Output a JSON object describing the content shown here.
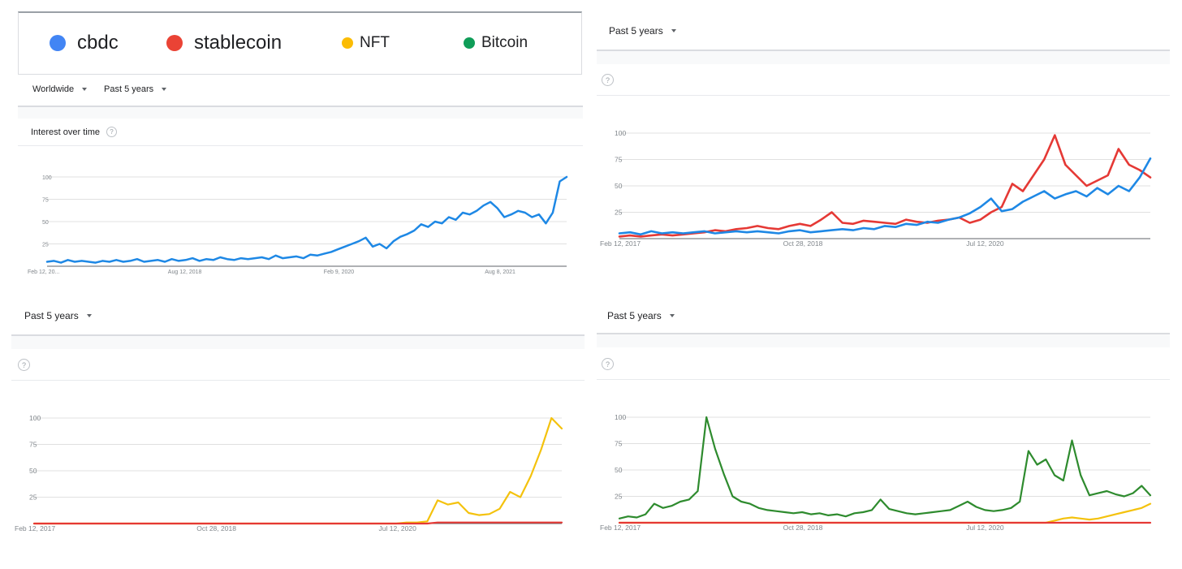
{
  "legend": [
    {
      "name": "cbdc",
      "color": "#4285f4"
    },
    {
      "name": "stablecoin",
      "color": "#ea4335"
    },
    {
      "name": "NFT",
      "color": "#fbbc04"
    },
    {
      "name": "Bitcoin",
      "color": "#0f9d58"
    }
  ],
  "filters": {
    "region": "Worldwide",
    "period": "Past 5 years"
  },
  "panel1": {
    "title": "Interest over time",
    "help": "?"
  },
  "help": "?",
  "colors": {
    "cbdc_line": "#1e88e5",
    "stablecoin_line": "#e53935",
    "nft_line": "#f4c20d",
    "bitcoin_line": "#2e8b2e",
    "grid": "#e0e0e0",
    "axis": "#5f6368"
  },
  "chart_data": [
    {
      "type": "line",
      "ylim": [
        0,
        100
      ],
      "y_ticks": [
        "100",
        "75",
        "50",
        "25"
      ],
      "x_ticks": [
        "Feb 12, 20...",
        "Aug 12, 2018",
        "Feb 9, 2020",
        "Aug 8, 2021"
      ],
      "series": [
        {
          "name": "cbdc",
          "values": [
            5,
            6,
            4,
            7,
            5,
            6,
            5,
            4,
            6,
            5,
            7,
            5,
            6,
            8,
            5,
            6,
            7,
            5,
            8,
            6,
            7,
            9,
            6,
            8,
            7,
            10,
            8,
            7,
            9,
            8,
            9,
            10,
            8,
            12,
            9,
            10,
            11,
            9,
            13,
            12,
            14,
            16,
            19,
            22,
            25,
            28,
            32,
            22,
            25,
            20,
            28,
            33,
            36,
            40,
            47,
            44,
            50,
            48,
            55,
            52,
            60,
            58,
            62,
            68,
            72,
            65,
            55,
            58,
            62,
            60,
            55,
            58,
            48,
            60,
            95,
            100
          ]
        }
      ]
    },
    {
      "type": "line",
      "ylim": [
        0,
        100
      ],
      "y_ticks": [
        "100",
        "75",
        "50",
        "25"
      ],
      "x_ticks": [
        "Feb 12, 2017",
        "Oct 28, 2018",
        "Jul 12, 2020"
      ],
      "series": [
        {
          "name": "cbdc",
          "values": [
            5,
            6,
            4,
            7,
            5,
            6,
            5,
            6,
            7,
            5,
            6,
            7,
            6,
            7,
            6,
            5,
            7,
            8,
            6,
            7,
            8,
            9,
            8,
            10,
            9,
            12,
            11,
            14,
            13,
            16,
            15,
            18,
            20,
            24,
            30,
            38,
            26,
            28,
            35,
            40,
            45,
            38,
            42,
            45,
            40,
            48,
            42,
            50,
            45,
            58,
            76
          ]
        },
        {
          "name": "stablecoin",
          "values": [
            2,
            3,
            2,
            3,
            4,
            3,
            4,
            5,
            6,
            8,
            7,
            9,
            10,
            12,
            10,
            9,
            12,
            14,
            12,
            18,
            25,
            15,
            14,
            17,
            16,
            15,
            14,
            18,
            16,
            15,
            17,
            18,
            20,
            15,
            18,
            25,
            30,
            52,
            45,
            60,
            75,
            98,
            70,
            60,
            50,
            55,
            60,
            85,
            70,
            65,
            58
          ]
        }
      ]
    },
    {
      "type": "line",
      "ylim": [
        0,
        100
      ],
      "y_ticks": [
        "100",
        "75",
        "50",
        "25"
      ],
      "x_ticks": [
        "Feb 12, 2017",
        "Oct 28, 2018",
        "Jul 12, 2020"
      ],
      "series": [
        {
          "name": "NFT",
          "values": [
            0,
            0,
            0,
            0,
            0,
            0,
            0,
            0,
            0,
            0,
            0,
            0,
            0,
            0,
            0,
            0,
            0,
            0,
            0,
            0,
            0,
            0,
            0,
            0,
            0,
            0,
            0,
            0,
            0,
            0,
            0,
            0,
            0,
            0,
            0,
            0,
            1,
            1,
            2,
            22,
            18,
            20,
            10,
            8,
            9,
            14,
            30,
            25,
            45,
            70,
            100,
            90
          ]
        },
        {
          "name": "stablecoin",
          "values": [
            0,
            0,
            0,
            0,
            0,
            0,
            0,
            0,
            0,
            0,
            0,
            0,
            0,
            0,
            0,
            0,
            0,
            0,
            0,
            0,
            0,
            0,
            0,
            0,
            0,
            0,
            0,
            0,
            0,
            0,
            0,
            0,
            0,
            0,
            0,
            0,
            0,
            0,
            0,
            1,
            1,
            1,
            1,
            1,
            1,
            1,
            1,
            1,
            1,
            1,
            1,
            1
          ]
        }
      ]
    },
    {
      "type": "line",
      "ylim": [
        0,
        100
      ],
      "y_ticks": [
        "100",
        "75",
        "50",
        "25"
      ],
      "x_ticks": [
        "Feb 12, 2017",
        "Oct 28, 2018",
        "Jul 12, 2020"
      ],
      "series": [
        {
          "name": "Bitcoin",
          "values": [
            4,
            6,
            5,
            8,
            18,
            14,
            16,
            20,
            22,
            30,
            100,
            70,
            46,
            25,
            20,
            18,
            14,
            12,
            11,
            10,
            9,
            10,
            8,
            9,
            7,
            8,
            6,
            9,
            10,
            12,
            22,
            13,
            11,
            9,
            8,
            9,
            10,
            11,
            12,
            16,
            20,
            15,
            12,
            11,
            12,
            14,
            20,
            68,
            55,
            60,
            45,
            40,
            78,
            45,
            26,
            28,
            30,
            27,
            25,
            28,
            35,
            26
          ]
        },
        {
          "name": "NFT",
          "values": [
            0,
            0,
            0,
            0,
            0,
            0,
            0,
            0,
            0,
            0,
            0,
            0,
            0,
            0,
            0,
            0,
            0,
            0,
            0,
            0,
            0,
            0,
            0,
            0,
            0,
            0,
            0,
            0,
            0,
            0,
            0,
            0,
            0,
            0,
            0,
            0,
            0,
            0,
            0,
            0,
            0,
            0,
            0,
            0,
            0,
            0,
            0,
            0,
            0,
            0,
            2,
            4,
            5,
            4,
            3,
            4,
            6,
            8,
            10,
            12,
            14,
            18
          ]
        },
        {
          "name": "stablecoin",
          "values": [
            0,
            0,
            0,
            0,
            0,
            0,
            0,
            0,
            0,
            0,
            0,
            0,
            0,
            0,
            0,
            0,
            0,
            0,
            0,
            0,
            0,
            0,
            0,
            0,
            0,
            0,
            0,
            0,
            0,
            0,
            0,
            0,
            0,
            0,
            0,
            0,
            0,
            0,
            0,
            0,
            0,
            0,
            0,
            0,
            0,
            0,
            0,
            0,
            0,
            0,
            0,
            0,
            0,
            0,
            0,
            0,
            0,
            0,
            0,
            0,
            0,
            0
          ]
        }
      ]
    }
  ]
}
